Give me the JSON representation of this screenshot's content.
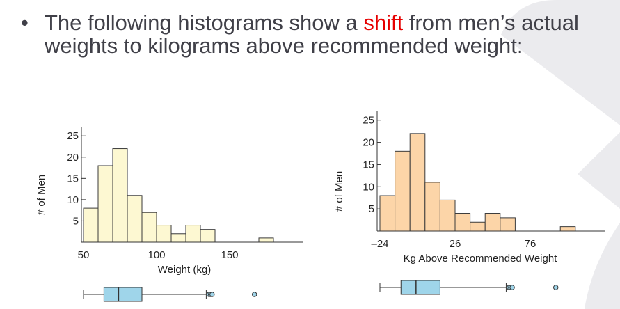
{
  "slide": {
    "bullet_symbol": "•",
    "text_before": "The following histograms show a ",
    "highlight": "shift",
    "text_after": " from men’s actual weights to kilograms above recommended weight:",
    "text_color": "#404048",
    "highlight_color": "#e60000"
  },
  "chart_data": [
    {
      "type": "bar",
      "title": "",
      "xlabel": "Weight (kg)",
      "ylabel": "# of Men",
      "bin_edges": [
        50,
        60,
        70,
        80,
        90,
        100,
        110,
        120,
        130,
        140,
        150,
        160,
        170,
        180
      ],
      "values": [
        8,
        18,
        22,
        11,
        7,
        4,
        2,
        4,
        3,
        0,
        0,
        0,
        1
      ],
      "xlim": [
        50,
        200
      ],
      "ylim": [
        0,
        27
      ],
      "xticks": [
        50,
        100,
        150
      ],
      "yticks": [
        5,
        10,
        15,
        20,
        25
      ],
      "bar_color": "#fdf8d2",
      "boxplot": {
        "whisker_low": 50,
        "q1": 64,
        "median": 74,
        "q3": 90,
        "whisker_high": 134,
        "outliers": [
          136,
          137,
          138,
          167
        ]
      }
    },
    {
      "type": "bar",
      "title": "",
      "xlabel": "Kg Above Recommended Weight",
      "ylabel": "# of Men",
      "bin_edges": [
        -24,
        -14,
        -4,
        6,
        16,
        26,
        36,
        46,
        56,
        66,
        76,
        86,
        96,
        106
      ],
      "values": [
        8,
        18,
        22,
        11,
        7,
        4,
        2,
        4,
        3,
        0,
        0,
        0,
        1
      ],
      "xlim": [
        -24,
        126
      ],
      "ylim": [
        0,
        27
      ],
      "xticks": [
        -24,
        26,
        76
      ],
      "xtick_labels": [
        "–24",
        "26",
        "76"
      ],
      "yticks": [
        5,
        10,
        15,
        20,
        25
      ],
      "bar_color": "#fcd5a8",
      "boxplot": {
        "whisker_low": -24,
        "q1": -10,
        "median": 0,
        "q3": 16,
        "whisker_high": 60,
        "outliers": [
          62,
          63,
          64,
          93
        ]
      }
    }
  ]
}
